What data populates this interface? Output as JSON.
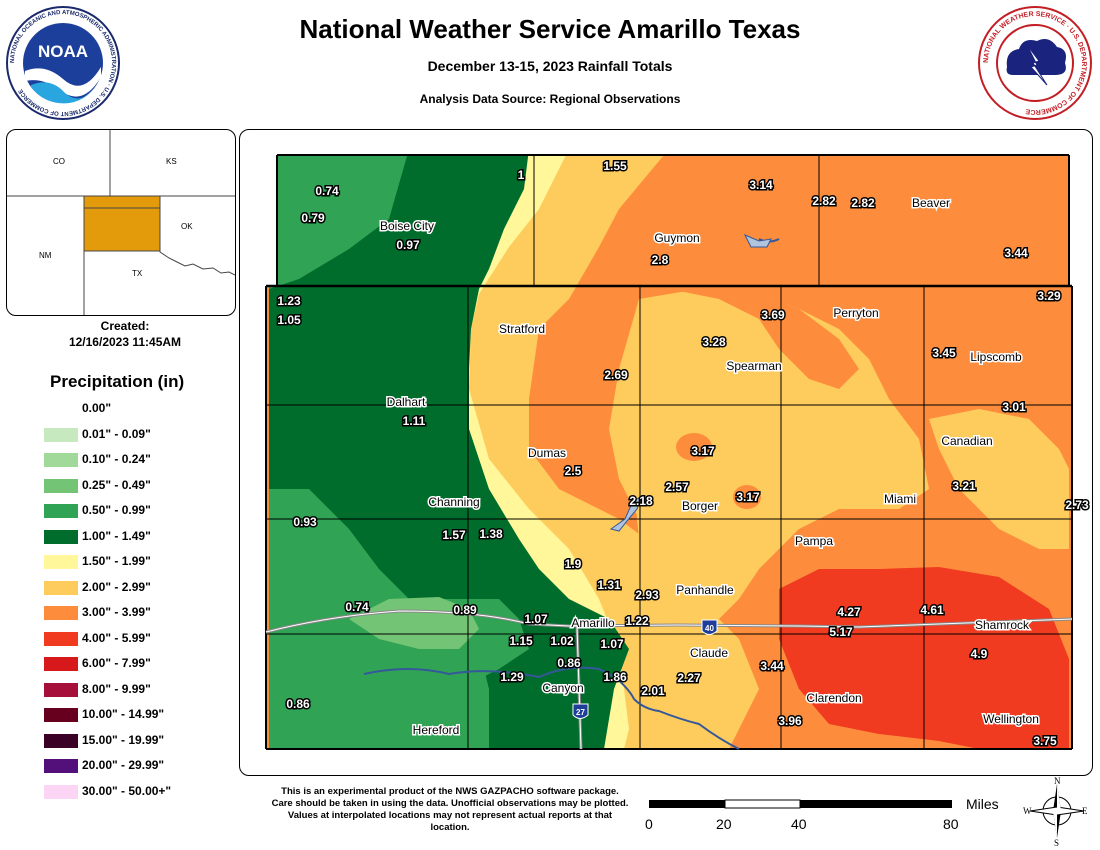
{
  "header": {
    "title": "National Weather Service Amarillo Texas",
    "subtitle": "December 13-15, 2023 Rainfall Totals",
    "source": "Analysis Data Source: Regional Observations"
  },
  "logos": {
    "noaa_text": "NOAA",
    "noaa_ring": "NATIONAL OCEANIC AND ATMOSPHERIC ADMINISTRATION · U.S. DEPARTMENT OF COMMERCE",
    "nws_ring": "NATIONAL WEATHER SERVICE · U.S. DEPARTMENT OF COMMERCE"
  },
  "inset": {
    "states": {
      "co": "CO",
      "ks": "KS",
      "nm": "NM",
      "ok": "OK",
      "tx": "TX"
    },
    "highlight_color": "#E39B0B"
  },
  "created": {
    "label": "Created:",
    "timestamp": "12/16/2023 11:45AM"
  },
  "legend": {
    "title": "Precipitation (in)",
    "items": [
      {
        "label": "0.00\"",
        "color": ""
      },
      {
        "label": "0.01\" - 0.09\"",
        "color": "#C7E9C0"
      },
      {
        "label": "0.10\" - 0.24\"",
        "color": "#A1D99B"
      },
      {
        "label": "0.25\" - 0.49\"",
        "color": "#74C476"
      },
      {
        "label": "0.50\" - 0.99\"",
        "color": "#31A354"
      },
      {
        "label": "1.00\" - 1.49\"",
        "color": "#006D2C"
      },
      {
        "label": "1.50\" - 1.99\"",
        "color": "#FFF799"
      },
      {
        "label": "2.00\" - 2.99\"",
        "color": "#FECC5C"
      },
      {
        "label": "3.00\" - 3.99\"",
        "color": "#FD8D3C"
      },
      {
        "label": "4.00\" - 5.99\"",
        "color": "#F03B20"
      },
      {
        "label": "6.00\" - 7.99\"",
        "color": "#D7191C"
      },
      {
        "label": "8.00\" - 9.99\"",
        "color": "#A50F3A"
      },
      {
        "label": "10.00\" - 14.99\"",
        "color": "#67001F"
      },
      {
        "label": "15.00\" - 19.99\"",
        "color": "#3A0026"
      },
      {
        "label": "20.00\" - 29.99\"",
        "color": "#54107A"
      },
      {
        "label": "30.00\" - 50.00+\"",
        "color": "#FCD5F5"
      }
    ]
  },
  "map": {
    "cities": [
      {
        "name": "Boise City"
      },
      {
        "name": "Guymon"
      },
      {
        "name": "Beaver"
      },
      {
        "name": "Stratford"
      },
      {
        "name": "Perryton"
      },
      {
        "name": "Spearman"
      },
      {
        "name": "Lipscomb"
      },
      {
        "name": "Dalhart"
      },
      {
        "name": "Dumas"
      },
      {
        "name": "Canadian"
      },
      {
        "name": "Channing"
      },
      {
        "name": "Borger"
      },
      {
        "name": "Miami"
      },
      {
        "name": "Pampa"
      },
      {
        "name": "Panhandle"
      },
      {
        "name": "Amarillo"
      },
      {
        "name": "Shamrock"
      },
      {
        "name": "Claude"
      },
      {
        "name": "Canyon"
      },
      {
        "name": "Clarendon"
      },
      {
        "name": "Hereford"
      },
      {
        "name": "Wellington"
      }
    ],
    "observations": [
      {
        "value": "0.74"
      },
      {
        "value": "0.79"
      },
      {
        "value": "0.97"
      },
      {
        "value": "1"
      },
      {
        "value": "1.55"
      },
      {
        "value": "3.14"
      },
      {
        "value": "2.82"
      },
      {
        "value": "2.82"
      },
      {
        "value": "2.8"
      },
      {
        "value": "3.44"
      },
      {
        "value": "1.23"
      },
      {
        "value": "1.05"
      },
      {
        "value": "3.69"
      },
      {
        "value": "3.29"
      },
      {
        "value": "3.28"
      },
      {
        "value": "3.45"
      },
      {
        "value": "2.69"
      },
      {
        "value": "1.11"
      },
      {
        "value": "3.01"
      },
      {
        "value": "3.17"
      },
      {
        "value": "2.5"
      },
      {
        "value": "2.57"
      },
      {
        "value": "2.18"
      },
      {
        "value": "3.17"
      },
      {
        "value": "3.21"
      },
      {
        "value": "2.73"
      },
      {
        "value": "0.93"
      },
      {
        "value": "1.57"
      },
      {
        "value": "1.38"
      },
      {
        "value": "1.9"
      },
      {
        "value": "1.31"
      },
      {
        "value": "2.93"
      },
      {
        "value": "0.74"
      },
      {
        "value": "0.89"
      },
      {
        "value": "1.07"
      },
      {
        "value": "1.22"
      },
      {
        "value": "4.27"
      },
      {
        "value": "4.61"
      },
      {
        "value": "5.17"
      },
      {
        "value": "1.15"
      },
      {
        "value": "1.02"
      },
      {
        "value": "1.07"
      },
      {
        "value": "4.9"
      },
      {
        "value": "0.86"
      },
      {
        "value": "3.44"
      },
      {
        "value": "1.29"
      },
      {
        "value": "1.86"
      },
      {
        "value": "2.27"
      },
      {
        "value": "2.01"
      },
      {
        "value": "0.86"
      },
      {
        "value": "3.96"
      },
      {
        "value": "3.75"
      }
    ],
    "highways": {
      "i40": "40",
      "i27": "27"
    }
  },
  "disclaimer": "This is an experimental product of the NWS GAZPACHO software package. Care should be taken in using the data. Unofficial observations may be plotted. Values at interpolated locations may not represent actual reports at that location.",
  "scale": {
    "unit": "Miles",
    "ticks": [
      "0",
      "20",
      "40",
      "80"
    ]
  },
  "compass": {
    "n": "N",
    "e": "E",
    "s": "S",
    "w": "W"
  }
}
